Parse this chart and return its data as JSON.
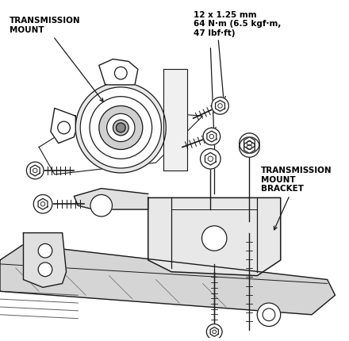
{
  "background_color": "#ffffff",
  "fig_width": 4.4,
  "fig_height": 4.3,
  "dpi": 100,
  "labels": {
    "transmission_mount": "TRANSMISSION\nMOUNT",
    "transmission_mount_bracket": "TRANSMISSION\nMOUNT\nBRACKET",
    "bolt_spec": "12 x 1.25 mm\n64 N·m (6.5 kgf·m,\n47 lbf·ft)"
  },
  "line_color": "#1a1a1a",
  "text_color": "#000000",
  "label_fontsize": 7.5,
  "spec_fontsize": 7.5
}
